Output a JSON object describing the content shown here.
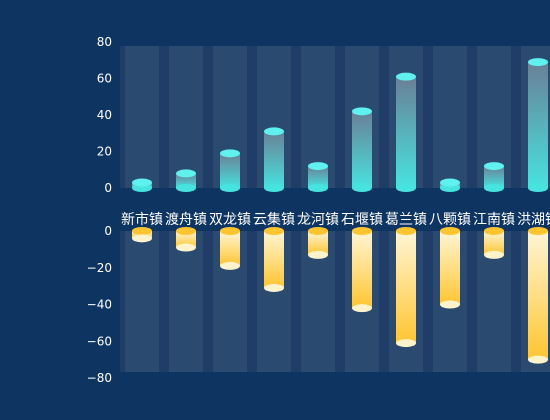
{
  "chart_data": {
    "type": "bar",
    "categories": [
      "新市镇",
      "渡舟镇",
      "双龙镇",
      "云集镇",
      "龙河镇",
      "石堰镇",
      "葛兰镇",
      "八颗镇",
      "江南镇",
      "洪湖镇"
    ],
    "series": [
      {
        "values": [
          3,
          8,
          19,
          31,
          12,
          42,
          61,
          3,
          12,
          69
        ]
      },
      {
        "values": [
          -4,
          -9,
          -19,
          -31,
          -13,
          -42,
          -61,
          -40,
          -13,
          -70
        ]
      }
    ],
    "top_axis": {
      "ylim": [
        0,
        80
      ],
      "ticks": [
        "0",
        "20",
        "40",
        "60",
        "80"
      ]
    },
    "bottom_axis": {
      "ylim": [
        -80,
        0
      ],
      "ticks": [
        "0",
        "−20",
        "−40",
        "−60",
        "−80"
      ]
    },
    "colors": {
      "background": "#0e3461",
      "band": "#2b4a70",
      "band_gap": "#1f3d66",
      "cyan_top": "#6a7f96",
      "cyan_bottom": "#47e3df",
      "cyan_cap": "#5ff1ee",
      "yellow_top": "#fff6d6",
      "yellow_bottom": "#ffc531",
      "yellow_cap": "#fff3cc",
      "tick_text": "#ffffff"
    },
    "grid": false,
    "legend": "none"
  }
}
